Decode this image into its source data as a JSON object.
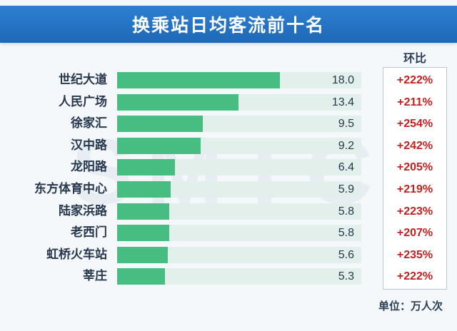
{
  "chart_data": {
    "type": "bar",
    "orientation": "horizontal",
    "title": "换乘站日均客流前十名",
    "yoy_header": "环比",
    "unit": "单位：万人次",
    "watermark": "SMTC",
    "xlim": [
      0,
      27
    ],
    "categories": [
      "世纪大道",
      "人民广场",
      "徐家汇",
      "汉中路",
      "龙阳路",
      "东方体育中心",
      "陆家浜路",
      "老西门",
      "虹桥火车站",
      "莘庄"
    ],
    "values": [
      18.0,
      13.4,
      9.5,
      9.2,
      6.4,
      5.9,
      5.8,
      5.8,
      5.6,
      5.3
    ],
    "value_labels": [
      "18.0",
      "13.4",
      "9.5",
      "9.2",
      "6.4",
      "5.9",
      "5.8",
      "5.8",
      "5.6",
      "5.3"
    ],
    "yoy": [
      "+222%",
      "+211%",
      "+254%",
      "+242%",
      "+205%",
      "+219%",
      "+223%",
      "+207%",
      "+235%",
      "+222%"
    ],
    "colors": {
      "bar": "#47bd82",
      "track": "#e2efea",
      "title_bg": "#2072c4",
      "yoy_text": "#c42020"
    }
  }
}
